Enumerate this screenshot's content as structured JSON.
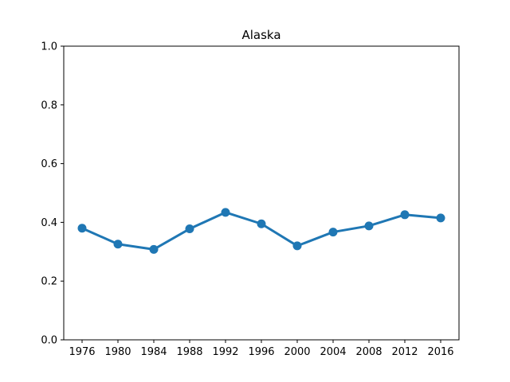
{
  "chart_data": {
    "type": "line",
    "title": "Alaska",
    "xlabel": "",
    "ylabel": "",
    "categories": [
      "1976",
      "1980",
      "1984",
      "1988",
      "1992",
      "1996",
      "2000",
      "2004",
      "2008",
      "2012",
      "2016"
    ],
    "series": [
      {
        "values": [
          0.38,
          0.326,
          0.308,
          0.378,
          0.434,
          0.395,
          0.32,
          0.367,
          0.388,
          0.426,
          0.415
        ],
        "color": "#1f77b4"
      }
    ],
    "ylim": [
      0.0,
      1.0
    ],
    "yticks": [
      "0.0",
      "0.2",
      "0.4",
      "0.6",
      "0.8",
      "1.0"
    ],
    "grid": false,
    "markers": true
  }
}
